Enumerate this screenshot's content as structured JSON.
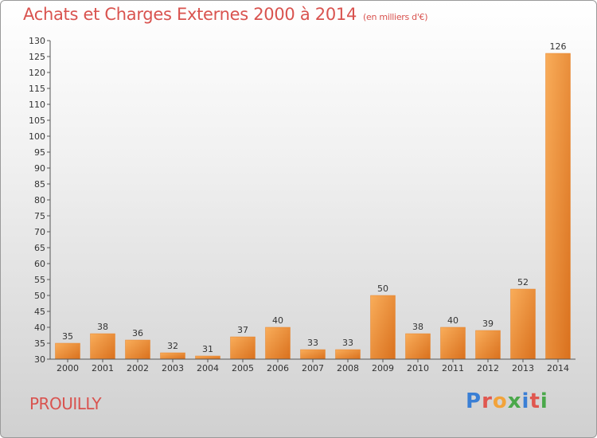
{
  "header": {
    "title": "Achats et Charges Externes 2000 à 2014",
    "subtitle": "(en milliers d'€)"
  },
  "footer": {
    "commune": "PROUILLY",
    "logo_text": "Proxiti",
    "logo_colors": [
      "#3a7fd5",
      "#e0574f",
      "#f2a33a",
      "#4aa84a",
      "#3a7fd5",
      "#e0574f",
      "#4aa84a"
    ]
  },
  "chart_data": {
    "type": "bar",
    "categories": [
      "2000",
      "2001",
      "2002",
      "2003",
      "2004",
      "2005",
      "2006",
      "2007",
      "2008",
      "2009",
      "2010",
      "2011",
      "2012",
      "2013",
      "2014"
    ],
    "values": [
      35,
      38,
      36,
      32,
      31,
      37,
      40,
      33,
      33,
      50,
      38,
      40,
      39,
      52,
      126
    ],
    "title": "Achats et Charges Externes 2000 à 2014",
    "subtitle": "(en milliers d'€)",
    "xlabel": "",
    "ylabel": "",
    "ylim": [
      30,
      130
    ],
    "ytick_step": 5,
    "grid": false,
    "legend": "none",
    "bar_color": "#f08a2a"
  }
}
